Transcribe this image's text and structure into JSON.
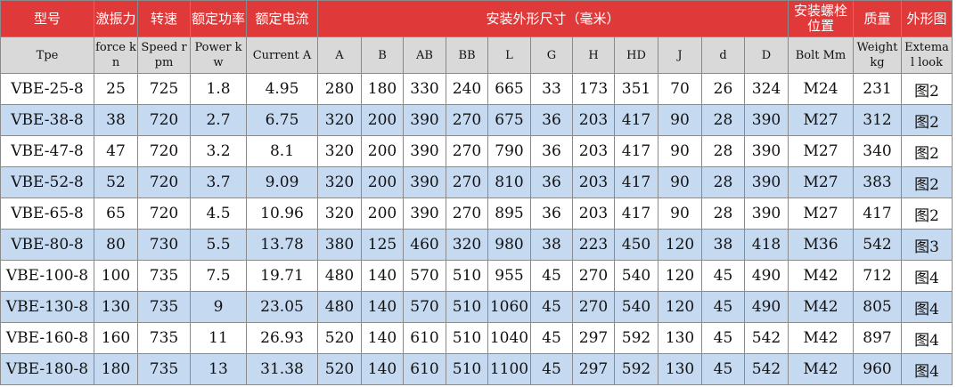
{
  "colors": {
    "header": "#e0393a",
    "subheader": "#d9d9d9",
    "alt_row": "#c5d9f1"
  },
  "header_cn": [
    "型号",
    "激振力",
    "转速",
    "额定功率",
    "额定电流",
    "安装外形尺寸（毫米）",
    "安装螺栓位置",
    "质量",
    "外形图"
  ],
  "header_en": [
    "Tpe",
    "force kn",
    "Speed rpm",
    "Power kw",
    "Current A",
    "A",
    "B",
    "AB",
    "BB",
    "L",
    "G",
    "H",
    "HD",
    "J",
    "d",
    "D",
    "Bolt Mm",
    "Weight kg",
    "Extema l look"
  ],
  "rows": [
    [
      "VBE-25-8",
      "25",
      "725",
      "1.8",
      "4.95",
      "280",
      "180",
      "330",
      "240",
      "665",
      "33",
      "173",
      "351",
      "70",
      "26",
      "324",
      "M24",
      "231",
      "图2"
    ],
    [
      "VBE-38-8",
      "38",
      "720",
      "2.7",
      "6.75",
      "320",
      "200",
      "390",
      "270",
      "675",
      "36",
      "203",
      "417",
      "90",
      "28",
      "390",
      "M27",
      "312",
      "图2"
    ],
    [
      "VBE-47-8",
      "47",
      "720",
      "3.2",
      "8.1",
      "320",
      "200",
      "390",
      "270",
      "790",
      "36",
      "203",
      "417",
      "90",
      "28",
      "390",
      "M27",
      "340",
      "图2"
    ],
    [
      "VBE-52-8",
      "52",
      "720",
      "3.7",
      "9.09",
      "320",
      "200",
      "390",
      "270",
      "810",
      "36",
      "203",
      "417",
      "90",
      "28",
      "390",
      "M27",
      "383",
      "图2"
    ],
    [
      "VBE-65-8",
      "65",
      "720",
      "4.5",
      "10.96",
      "320",
      "200",
      "390",
      "270",
      "895",
      "36",
      "203",
      "417",
      "90",
      "28",
      "390",
      "M27",
      "417",
      "图2"
    ],
    [
      "VBE-80-8",
      "80",
      "730",
      "5.5",
      "13.78",
      "380",
      "125",
      "460",
      "320",
      "980",
      "38",
      "223",
      "450",
      "120",
      "38",
      "418",
      "M36",
      "542",
      "图3"
    ],
    [
      "VBE-100-8",
      "100",
      "735",
      "7.5",
      "19.71",
      "480",
      "140",
      "570",
      "510",
      "955",
      "45",
      "270",
      "540",
      "120",
      "45",
      "490",
      "M42",
      "712",
      "图4"
    ],
    [
      "VBE-130-8",
      "130",
      "735",
      "9",
      "23.05",
      "480",
      "140",
      "570",
      "510",
      "1060",
      "45",
      "270",
      "540",
      "120",
      "45",
      "490",
      "M42",
      "805",
      "图4"
    ],
    [
      "VBE-160-8",
      "160",
      "735",
      "11",
      "26.93",
      "520",
      "140",
      "610",
      "510",
      "1040",
      "45",
      "297",
      "592",
      "130",
      "45",
      "542",
      "M42",
      "897",
      "图4"
    ],
    [
      "VBE-180-8",
      "180",
      "735",
      "13",
      "31.38",
      "520",
      "140",
      "610",
      "510",
      "1100",
      "45",
      "297",
      "592",
      "130",
      "45",
      "542",
      "M42",
      "960",
      "图4"
    ]
  ]
}
